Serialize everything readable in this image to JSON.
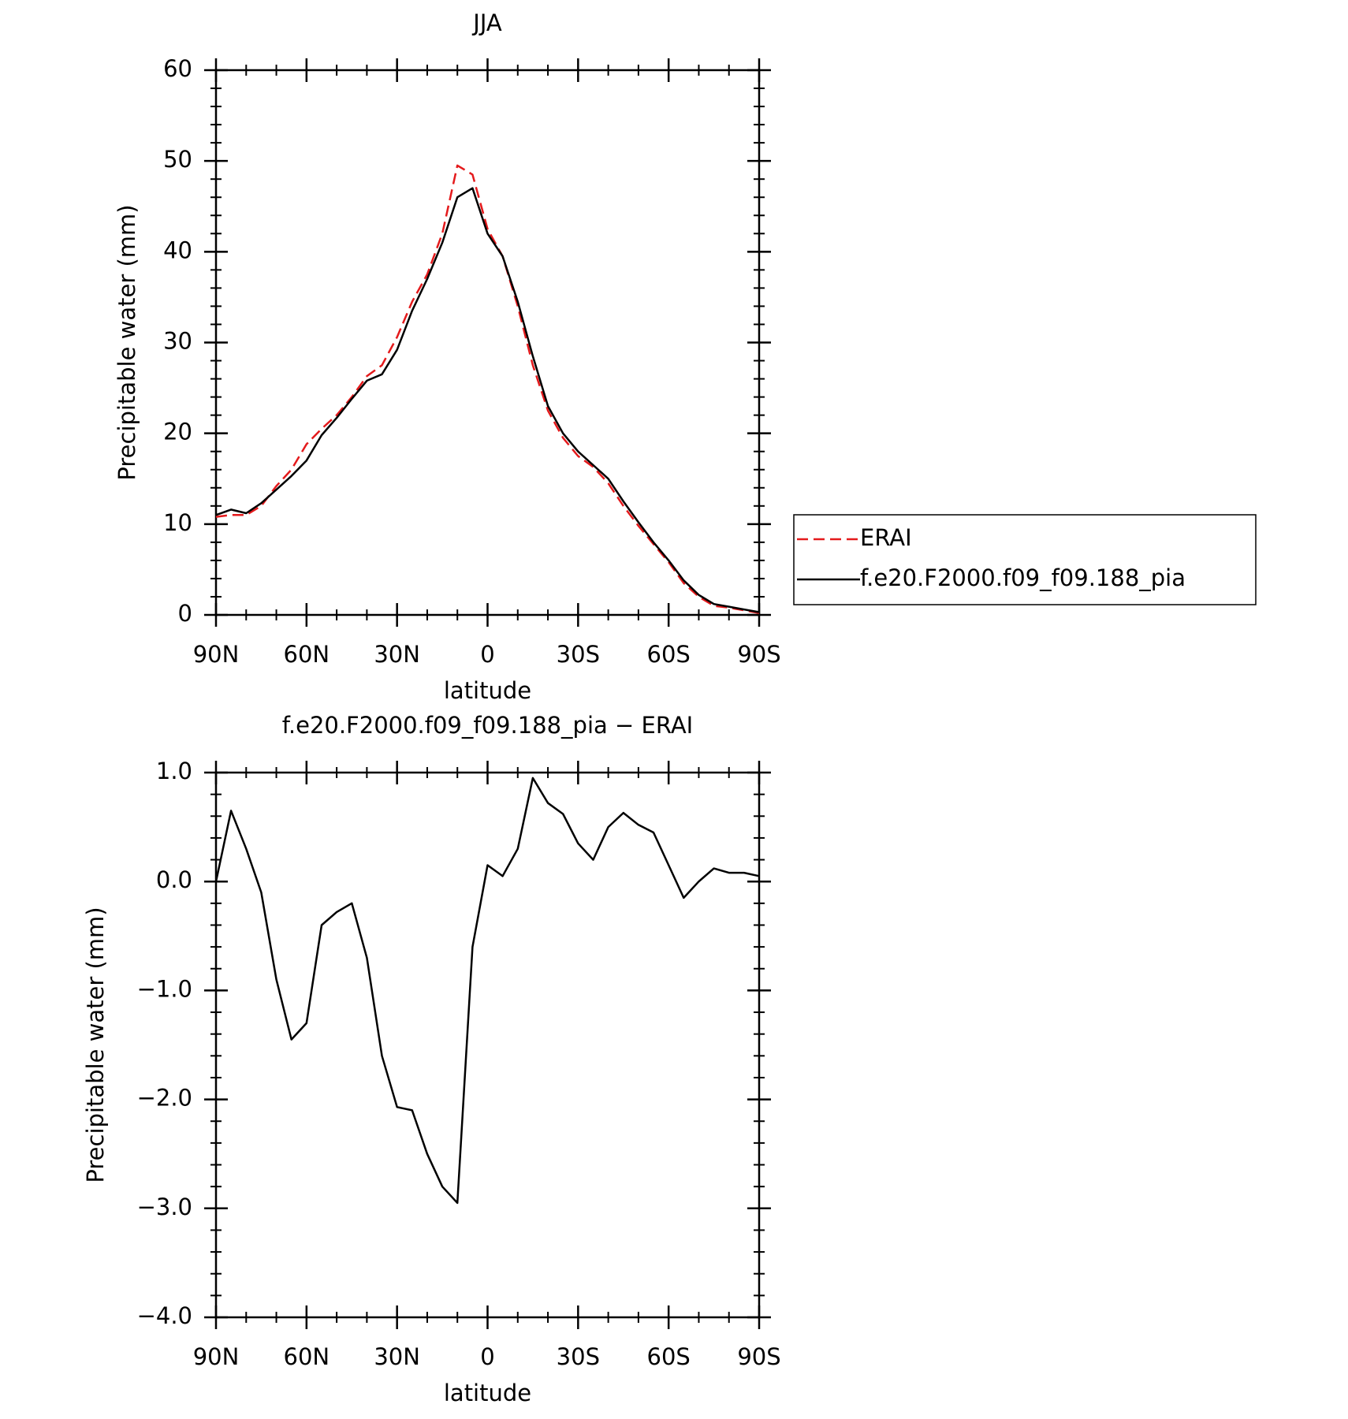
{
  "chart_data": [
    {
      "type": "line",
      "title": "JJA",
      "xlabel": "latitude",
      "ylabel": "Precipitable water (mm)",
      "x": [
        90,
        85,
        80,
        75,
        70,
        65,
        60,
        55,
        50,
        45,
        40,
        35,
        30,
        25,
        20,
        15,
        10,
        5,
        0,
        -5,
        -10,
        -15,
        -20,
        -25,
        -30,
        -35,
        -40,
        -45,
        -50,
        -55,
        -60,
        -65,
        -70,
        -75,
        -80,
        -85,
        -90
      ],
      "series": [
        {
          "name": "ERAI",
          "color": "#e41a1c",
          "dash": true,
          "values": [
            10.8,
            11.0,
            11.0,
            12.0,
            14.2,
            16.0,
            18.8,
            20.5,
            22.0,
            24.0,
            26.3,
            27.5,
            30.6,
            34.5,
            37.5,
            42.0,
            49.5,
            48.5,
            42.5,
            39.5,
            34.0,
            27.5,
            22.5,
            19.5,
            17.5,
            16.3,
            14.5,
            12.0,
            9.8,
            7.8,
            5.8,
            3.5,
            2.0,
            1.0,
            0.8,
            0.5,
            0.2
          ]
        },
        {
          "name": "f.e20.F2000.f09_f09.188_pia",
          "color": "#000000",
          "dash": false,
          "values": [
            11.0,
            11.6,
            11.2,
            12.3,
            13.8,
            15.3,
            17.0,
            19.8,
            21.7,
            23.8,
            25.8,
            26.5,
            29.2,
            33.5,
            37.0,
            41.0,
            46.0,
            47.0,
            42.0,
            39.5,
            34.5,
            28.5,
            23.0,
            20.0,
            18.0,
            16.5,
            15.0,
            12.5,
            10.2,
            8.0,
            6.0,
            3.8,
            2.2,
            1.2,
            0.9,
            0.6,
            0.3
          ]
        }
      ],
      "xlim": [
        90,
        -90
      ],
      "xticks": [
        {
          "value": 90,
          "label": "90N"
        },
        {
          "value": 60,
          "label": "60N"
        },
        {
          "value": 30,
          "label": "30N"
        },
        0,
        {
          "value": -30,
          "label": "30S"
        },
        {
          "value": -60,
          "label": "60S"
        },
        {
          "value": -90,
          "label": "90S"
        }
      ],
      "ylim": [
        0,
        60
      ],
      "yticks": [
        0,
        10,
        20,
        30,
        40,
        50,
        60
      ],
      "legend": "right"
    },
    {
      "type": "line",
      "title": "f.e20.F2000.f09_f09.188_pia − ERAI",
      "xlabel": "latitude",
      "ylabel": "Precipitable water (mm)",
      "x": [
        90,
        85,
        80,
        75,
        70,
        65,
        60,
        55,
        50,
        45,
        40,
        35,
        30,
        25,
        20,
        15,
        10,
        5,
        0,
        -5,
        -10,
        -15,
        -20,
        -25,
        -30,
        -35,
        -40,
        -45,
        -50,
        -55,
        -60,
        -65,
        -70,
        -75,
        -80,
        -85,
        -90
      ],
      "color": "#000000",
      "values": [
        0.0,
        0.65,
        0.3,
        -0.1,
        -0.9,
        -1.45,
        -1.3,
        -0.4,
        -0.28,
        -0.2,
        -0.7,
        -1.6,
        -2.07,
        -2.1,
        -2.5,
        -2.8,
        -2.95,
        -0.6,
        0.15,
        0.05,
        0.3,
        0.95,
        0.72,
        0.62,
        0.35,
        0.2,
        0.5,
        0.63,
        0.52,
        0.45,
        0.15,
        -0.15,
        0.0,
        0.12,
        0.08,
        0.08,
        0.05
      ],
      "xlim": [
        90,
        -90
      ],
      "xticks": [
        {
          "value": 90,
          "label": "90N"
        },
        {
          "value": 60,
          "label": "60N"
        },
        {
          "value": 30,
          "label": "30N"
        },
        0,
        {
          "value": -30,
          "label": "30S"
        },
        {
          "value": -60,
          "label": "60S"
        },
        {
          "value": -90,
          "label": "90S"
        }
      ],
      "ylim": [
        -4,
        1
      ],
      "yticks": [
        {
          "value": 1,
          "label": "1.0"
        },
        {
          "value": 0,
          "label": "0.0"
        },
        {
          "value": -1,
          "label": "−1.0"
        },
        {
          "value": -2,
          "label": "−2.0"
        },
        {
          "value": -3,
          "label": "−3.0"
        },
        {
          "value": -4,
          "label": "−4.0"
        }
      ]
    }
  ]
}
